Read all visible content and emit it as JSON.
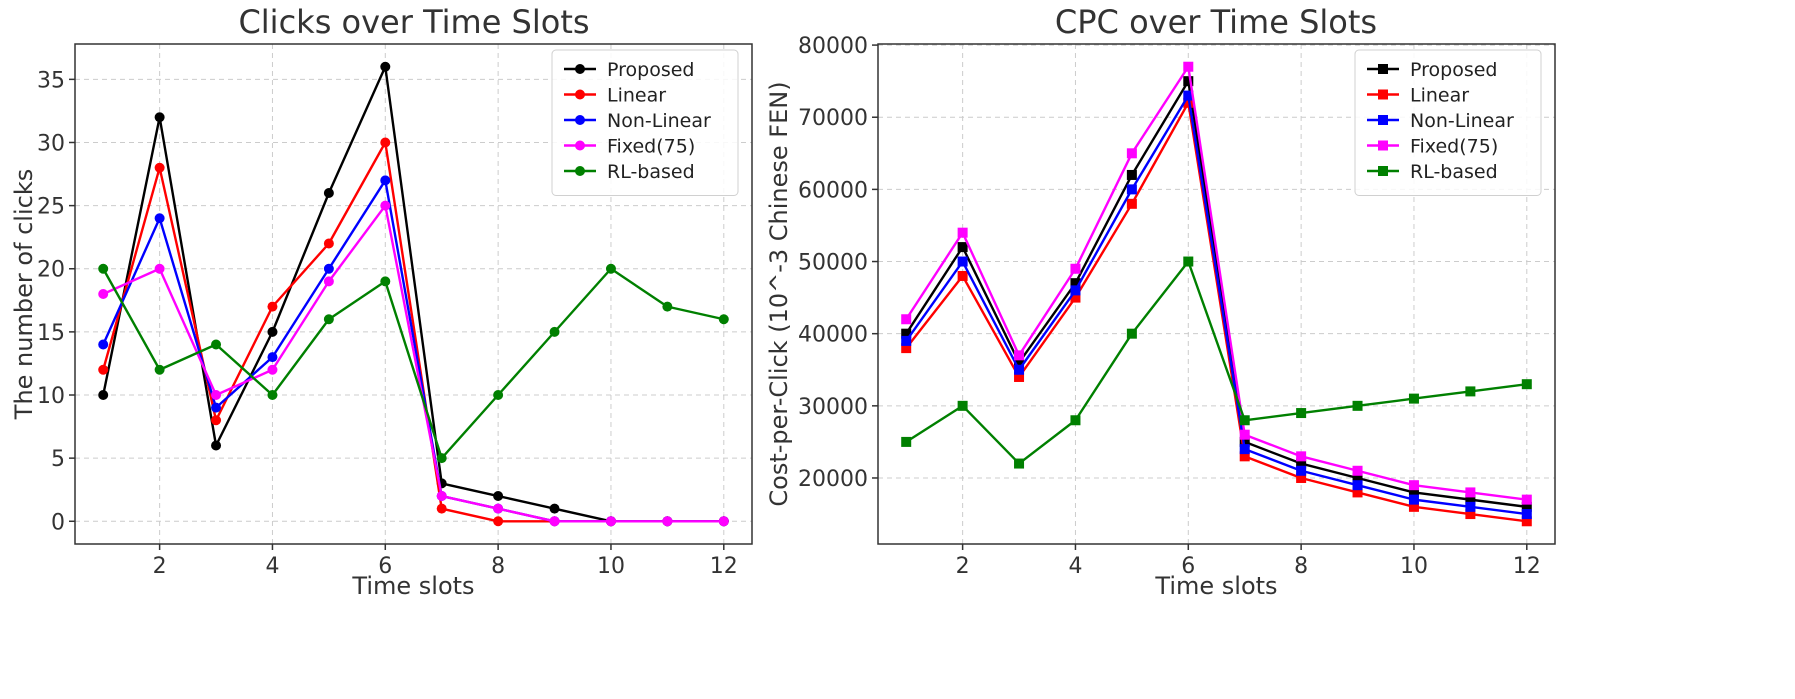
{
  "chart_data": [
    {
      "type": "line",
      "title": "Clicks over Time Slots",
      "xlabel": "Time slots",
      "ylabel": "The number of clicks",
      "x": [
        1,
        2,
        3,
        4,
        5,
        6,
        7,
        8,
        9,
        10,
        11,
        12
      ],
      "xlim": [
        0.5,
        12.5
      ],
      "ylim": [
        -1.8,
        37.8
      ],
      "xticks": [
        2,
        4,
        6,
        8,
        10,
        12
      ],
      "yticks": [
        0,
        5,
        10,
        15,
        20,
        25,
        30,
        35
      ],
      "grid": true,
      "marker": "circle",
      "legend_position": "top-right",
      "series": [
        {
          "name": "Proposed",
          "color": "#000000",
          "values": [
            10,
            32,
            6,
            15,
            26,
            36,
            3,
            2,
            1,
            0,
            0,
            0
          ]
        },
        {
          "name": "Linear",
          "color": "#ff0000",
          "values": [
            12,
            28,
            8,
            17,
            22,
            30,
            1,
            0,
            0,
            0,
            0,
            0
          ]
        },
        {
          "name": "Non-Linear",
          "color": "#0000ff",
          "values": [
            14,
            24,
            9,
            13,
            20,
            27,
            2,
            1,
            0,
            0,
            0,
            0
          ]
        },
        {
          "name": "Fixed(75)",
          "color": "#ff00ff",
          "values": [
            18,
            20,
            10,
            12,
            19,
            25,
            2,
            1,
            0,
            0,
            0,
            0
          ]
        },
        {
          "name": "RL-based",
          "color": "#008000",
          "values": [
            20,
            12,
            14,
            10,
            16,
            19,
            5,
            10,
            15,
            20,
            17,
            16
          ]
        }
      ]
    },
    {
      "type": "line",
      "title": "CPC over Time Slots",
      "xlabel": "Time slots",
      "ylabel": "Cost-per-Click (10^-3 Chinese FEN)",
      "x": [
        1,
        2,
        3,
        4,
        5,
        6,
        7,
        8,
        9,
        10,
        11,
        12
      ],
      "xlim": [
        0.5,
        12.5
      ],
      "ylim": [
        10850,
        80150
      ],
      "xticks": [
        2,
        4,
        6,
        8,
        10,
        12
      ],
      "yticks": [
        20000,
        30000,
        40000,
        50000,
        60000,
        70000,
        80000
      ],
      "grid": true,
      "marker": "square",
      "legend_position": "top-right",
      "series": [
        {
          "name": "Proposed",
          "color": "#000000",
          "values": [
            40000,
            52000,
            36000,
            47000,
            62000,
            75000,
            25000,
            22000,
            20000,
            18000,
            17000,
            16000
          ]
        },
        {
          "name": "Linear",
          "color": "#ff0000",
          "values": [
            38000,
            48000,
            34000,
            45000,
            58000,
            72000,
            23000,
            20000,
            18000,
            16000,
            15000,
            14000
          ]
        },
        {
          "name": "Non-Linear",
          "color": "#0000ff",
          "values": [
            39000,
            50000,
            35000,
            46000,
            60000,
            73000,
            24000,
            21000,
            19000,
            17000,
            16000,
            15000
          ]
        },
        {
          "name": "Fixed(75)",
          "color": "#ff00ff",
          "values": [
            42000,
            54000,
            37000,
            49000,
            65000,
            77000,
            26000,
            23000,
            21000,
            19000,
            18000,
            17000
          ]
        },
        {
          "name": "RL-based",
          "color": "#008000",
          "values": [
            25000,
            30000,
            22000,
            28000,
            40000,
            50000,
            28000,
            29000,
            30000,
            31000,
            32000,
            33000
          ]
        }
      ]
    }
  ]
}
